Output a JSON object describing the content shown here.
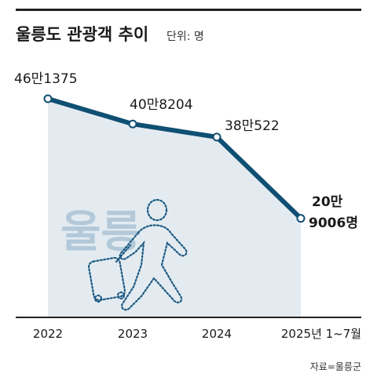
{
  "title": "울릉도 관광객 추이",
  "unit_label": "단위: 명",
  "source": "자료=울릉군",
  "watermark": "울릉",
  "colors": {
    "line": "#0f4f73",
    "area": "#e3ebf1",
    "watermark": "#b3c9d9",
    "figure_stroke": "#1f5a82",
    "text": "#1a1a1a",
    "rule": "#222222"
  },
  "chart_data": {
    "type": "area",
    "title": "울릉도 관광객 추이",
    "unit": "단위: 명",
    "categories": [
      "2022",
      "2023",
      "2024",
      "2025년 1~7월"
    ],
    "values": [
      461375,
      408204,
      380522,
      209006
    ],
    "data_labels": [
      "46만1375",
      "40만8204",
      "38만522",
      "20만 9006명"
    ],
    "ylim": [
      0,
      520000
    ],
    "grid": false,
    "legend": "none",
    "source": "자료=울릉군"
  }
}
